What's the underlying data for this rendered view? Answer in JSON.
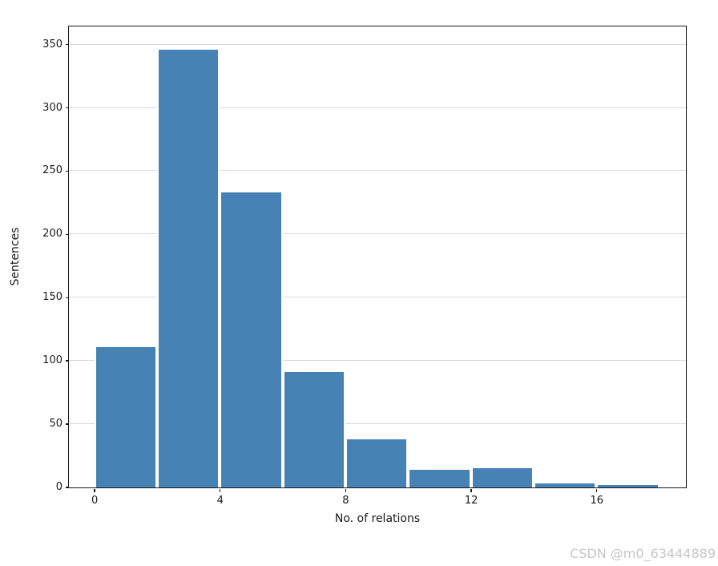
{
  "figure": {
    "watermark": "CSDN @m0_63444889"
  },
  "chart_data": {
    "type": "bar",
    "subtype": "histogram",
    "title": "",
    "xlabel": "No. of relations",
    "ylabel": "Sentences",
    "bin_edges": [
      0,
      2,
      4,
      6,
      8,
      10,
      12,
      14,
      16,
      18
    ],
    "counts": [
      112,
      347,
      234,
      92,
      39,
      15,
      16,
      4,
      3
    ],
    "xticks": [
      0,
      4,
      8,
      12,
      16
    ],
    "yticks": [
      0,
      50,
      100,
      150,
      200,
      250,
      300,
      350
    ],
    "xlim": [
      -0.82,
      18.84
    ],
    "ylim": [
      0,
      364.35
    ],
    "grid": "horizontal-only",
    "legend": "none",
    "bar_color": "#4682b4",
    "bar_edge_color": "#ffffff",
    "grid_color": "#d9d9d9",
    "axis_color": "#1a1a1a"
  }
}
